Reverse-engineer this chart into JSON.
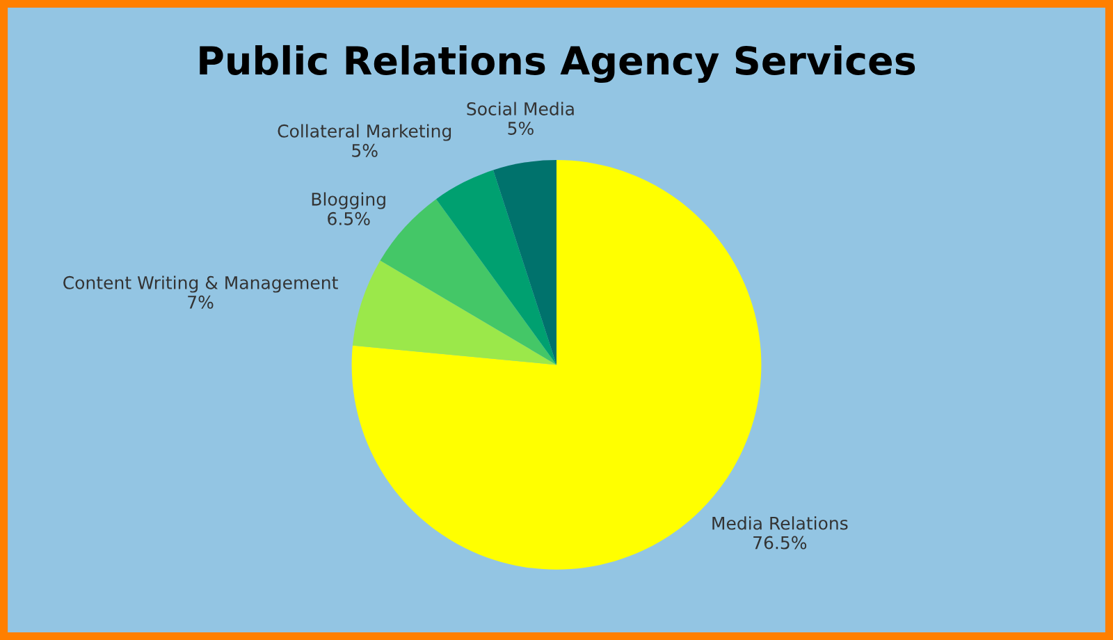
{
  "chart_data": {
    "type": "pie",
    "title": "Public Relations Agency Services",
    "categories": [
      "Media Relations",
      "Content Writing & Management",
      "Blogging",
      "Collateral Marketing",
      "Social Media"
    ],
    "values": [
      76.5,
      7,
      6.5,
      5,
      5
    ],
    "value_labels": [
      "76.5%",
      "7%",
      "6.5%",
      "5%",
      "5%"
    ],
    "colors": [
      "#ffff00",
      "#9be84a",
      "#44c767",
      "#00a070",
      "#00726c"
    ],
    "legend": false
  }
}
